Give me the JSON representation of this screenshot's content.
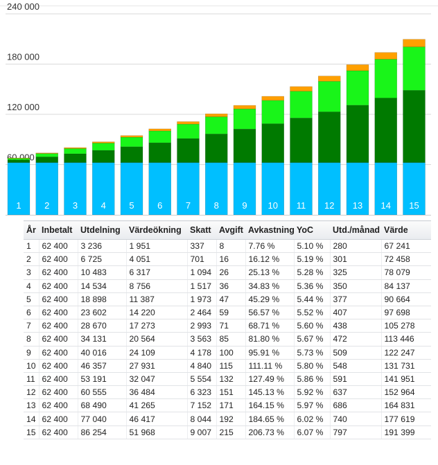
{
  "chart_data": {
    "type": "bar",
    "stacked": true,
    "categories": [
      "1",
      "2",
      "3",
      "4",
      "5",
      "6",
      "7",
      "8",
      "9",
      "10",
      "11",
      "12",
      "13",
      "14",
      "15"
    ],
    "series": [
      {
        "values": [
          62400,
          62400,
          62400,
          62400,
          62400,
          62400,
          62400,
          62400,
          62400,
          62400,
          62400,
          62400,
          62400,
          62400,
          62400
        ],
        "color": "#00bfff"
      },
      {
        "values": [
          3236,
          6725,
          10483,
          14534,
          18898,
          23602,
          28670,
          34131,
          40016,
          46357,
          53191,
          60555,
          68490,
          77040,
          86254
        ],
        "color": "#007a00"
      },
      {
        "values": [
          1951,
          4051,
          6317,
          8756,
          11387,
          14220,
          17273,
          20564,
          24109,
          27931,
          32047,
          36484,
          41265,
          46417,
          51968
        ],
        "color": "#19f519"
      },
      {
        "values": [
          337,
          701,
          1094,
          1517,
          1973,
          2464,
          2993,
          3563,
          4178,
          4840,
          5554,
          6323,
          7152,
          8044,
          9007
        ],
        "color": "#ffa000"
      }
    ],
    "yticks": [
      {
        "value": 60000,
        "label": "60 000"
      },
      {
        "value": 120000,
        "label": "120 000"
      },
      {
        "value": 180000,
        "label": "180 000"
      },
      {
        "value": 240000,
        "label": "240 000"
      }
    ],
    "ylim": [
      0,
      240000
    ],
    "grid": true
  },
  "table": {
    "headers": [
      "År",
      "Inbetalt",
      "Utdelning",
      "Värdeökning",
      "Skatt",
      "Avgift",
      "Avkastning",
      "YoC",
      "Utd./månad",
      "Värde"
    ],
    "rows": [
      [
        "1",
        "62 400",
        "3 236",
        "1 951",
        "337",
        "8",
        "7.76 %",
        "5.10 %",
        "280",
        "67 241"
      ],
      [
        "2",
        "62 400",
        "6 725",
        "4 051",
        "701",
        "16",
        "16.12 %",
        "5.19 %",
        "301",
        "72 458"
      ],
      [
        "3",
        "62 400",
        "10 483",
        "6 317",
        "1 094",
        "26",
        "25.13 %",
        "5.28 %",
        "325",
        "78 079"
      ],
      [
        "4",
        "62 400",
        "14 534",
        "8 756",
        "1 517",
        "36",
        "34.83 %",
        "5.36 %",
        "350",
        "84 137"
      ],
      [
        "5",
        "62 400",
        "18 898",
        "11 387",
        "1 973",
        "47",
        "45.29 %",
        "5.44 %",
        "377",
        "90 664"
      ],
      [
        "6",
        "62 400",
        "23 602",
        "14 220",
        "2 464",
        "59",
        "56.57 %",
        "5.52 %",
        "407",
        "97 698"
      ],
      [
        "7",
        "62 400",
        "28 670",
        "17 273",
        "2 993",
        "71",
        "68.71 %",
        "5.60 %",
        "438",
        "105 278"
      ],
      [
        "8",
        "62 400",
        "34 131",
        "20 564",
        "3 563",
        "85",
        "81.80 %",
        "5.67 %",
        "472",
        "113 446"
      ],
      [
        "9",
        "62 400",
        "40 016",
        "24 109",
        "4 178",
        "100",
        "95.91 %",
        "5.73 %",
        "509",
        "122 247"
      ],
      [
        "10",
        "62 400",
        "46 357",
        "27 931",
        "4 840",
        "115",
        "111.11 %",
        "5.80 %",
        "548",
        "131 731"
      ],
      [
        "11",
        "62 400",
        "53 191",
        "32 047",
        "5 554",
        "132",
        "127.49 %",
        "5.86 %",
        "591",
        "141 951"
      ],
      [
        "12",
        "62 400",
        "60 555",
        "36 484",
        "6 323",
        "151",
        "145.13 %",
        "5.92 %",
        "637",
        "152 964"
      ],
      [
        "13",
        "62 400",
        "68 490",
        "41 265",
        "7 152",
        "171",
        "164.15 %",
        "5.97 %",
        "686",
        "164 831"
      ],
      [
        "14",
        "62 400",
        "77 040",
        "46 417",
        "8 044",
        "192",
        "184.65 %",
        "6.02 %",
        "740",
        "177 619"
      ],
      [
        "15",
        "62 400",
        "86 254",
        "51 968",
        "9 007",
        "215",
        "206.73 %",
        "6.07 %",
        "797",
        "191 399"
      ]
    ]
  }
}
